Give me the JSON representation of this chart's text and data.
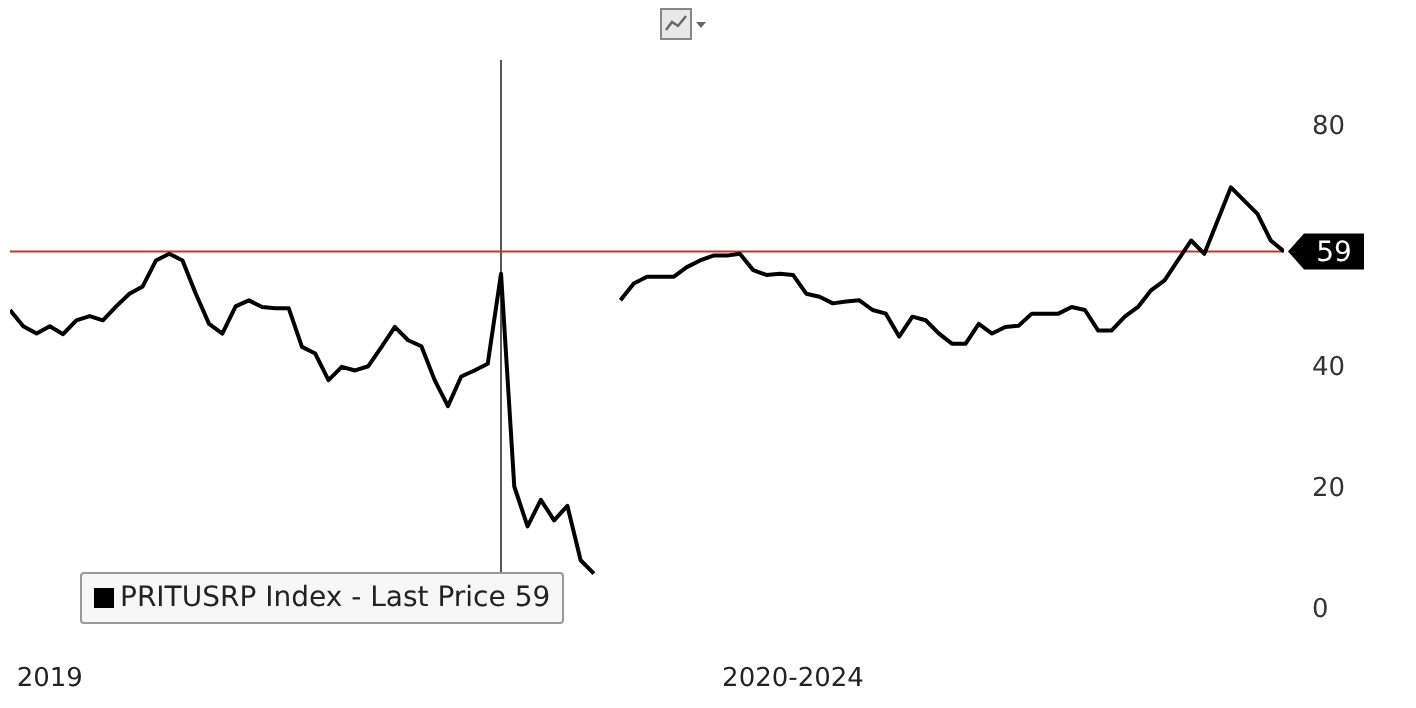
{
  "chart_data": {
    "type": "line",
    "categories": [
      null,
      null,
      null,
      "2019",
      null,
      null,
      null,
      null,
      null,
      null,
      null,
      null,
      null,
      null,
      null,
      null,
      null,
      null,
      null,
      null,
      null,
      null,
      null,
      null,
      null,
      null,
      null,
      null,
      null,
      null,
      null,
      null,
      null,
      null,
      null,
      null,
      null,
      null,
      null,
      null,
      null,
      null,
      null,
      null,
      null,
      null,
      null,
      null,
      null,
      null,
      null,
      null,
      null,
      null,
      null,
      null,
      null,
      null,
      null,
      "2020-2024",
      null,
      null,
      null,
      null,
      null,
      null,
      null,
      null,
      null,
      null,
      null,
      null,
      null,
      null,
      null,
      null,
      null,
      null,
      null,
      null,
      null,
      null,
      null,
      null,
      null,
      null,
      null,
      null,
      null,
      null,
      null,
      null,
      null,
      null,
      null,
      null,
      null
    ],
    "ylim": [
      0,
      90
    ],
    "yticks": [
      0,
      20,
      40,
      80
    ],
    "grid": false,
    "legend": "bottom left",
    "marker": "none",
    "line_style": "solid",
    "series": [
      {
        "name": "PRITUSRP Index - Last Price 59",
        "color": "#000000",
        "values": [
          49.3,
          46.6,
          45.4,
          46.6,
          45.3,
          47.6,
          48.3,
          47.6,
          49.9,
          52,
          53.2,
          57.5,
          58.6,
          57.5,
          52,
          47,
          45.4,
          49.9,
          50.9,
          49.8,
          49.6,
          49.6,
          43.2,
          42.1,
          37.7,
          39.9,
          39.3,
          40,
          43.2,
          46.5,
          44.3,
          43.3,
          37.7,
          33.4,
          38.3,
          39.3,
          40.4,
          55.3,
          20.1,
          13.5,
          17.9,
          14.5,
          16.9,
          7.9,
          5.7,
          null,
          50.9,
          53.7,
          54.8,
          54.8,
          54.8,
          56.4,
          57.5,
          58.3,
          58.3,
          58.6,
          55.9,
          55.1,
          55.3,
          55.1,
          52,
          51.5,
          50.4,
          50.7,
          50.9,
          49.3,
          48.7,
          44.9,
          48.2,
          47.6,
          45.4,
          43.7,
          43.7,
          47,
          45.4,
          46.5,
          46.7,
          48.7,
          48.7,
          48.7,
          49.8,
          49.3,
          45.9,
          45.9,
          48.2,
          49.8,
          52.6,
          54.2,
          57.5,
          60.8,
          58.6,
          64.1,
          69.6,
          67.4,
          65.2,
          60.8,
          59
        ]
      }
    ],
    "ref_lines": [
      {
        "axis": "y",
        "value": 59,
        "label": "59",
        "color": "#c0392b"
      }
    ]
  }
}
